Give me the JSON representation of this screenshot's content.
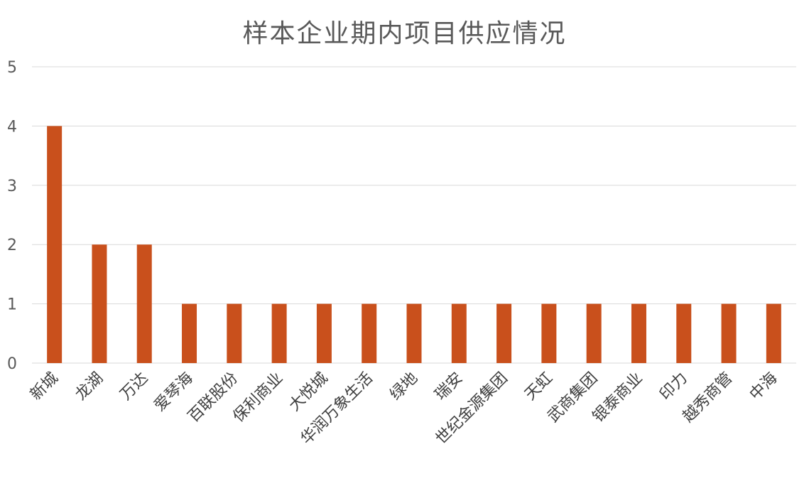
{
  "chart_data": {
    "type": "bar",
    "title": "样本企业期内项目供应情况",
    "categories": [
      "新城",
      "龙湖",
      "万达",
      "爱琴海",
      "百联股份",
      "保利商业",
      "大悦城",
      "华润万象生活",
      "绿地",
      "瑞安",
      "世纪金源集团",
      "天虹",
      "武商集团",
      "银泰商业",
      "印力",
      "越秀商管",
      "中海"
    ],
    "values": [
      4,
      2,
      2,
      1,
      1,
      1,
      1,
      1,
      1,
      1,
      1,
      1,
      1,
      1,
      1,
      1,
      1
    ],
    "ylim": [
      0,
      5
    ],
    "yticks": [
      "0",
      "1",
      "2",
      "3",
      "4",
      "5"
    ],
    "xlabel": "",
    "ylabel": "",
    "grid": true,
    "legend": "none",
    "bar_color": "#C9501C"
  }
}
